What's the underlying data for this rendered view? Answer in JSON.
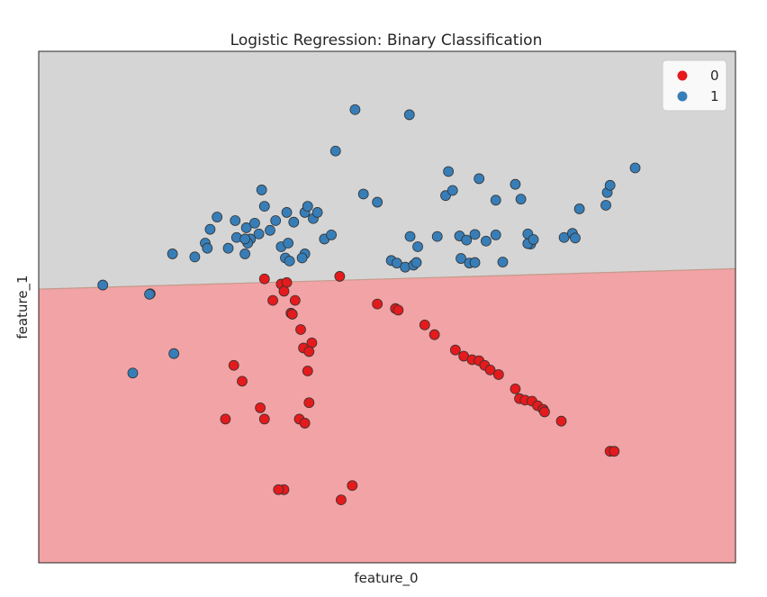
{
  "chart_data": {
    "type": "scatter",
    "title": "Logistic Regression: Binary Classification",
    "xlabel": "feature_0",
    "ylabel": "feature_1",
    "xlim": [
      0,
      100
    ],
    "ylim": [
      0,
      100
    ],
    "grid": false,
    "ticks_visible": false,
    "legend": {
      "placement": "top-right"
    },
    "decision_boundary": {
      "description_values": [
        [
          0,
          53.5
        ],
        [
          100,
          57.5
        ]
      ],
      "region_above_class": "1",
      "region_below_class": "0"
    },
    "colors": {
      "class_0": "#e41a1c",
      "class_1": "#377eb8",
      "region_0": "#f2a3a5",
      "region_1": "#d5d5d5",
      "point_edge": "#333333",
      "boundary": "#c49a8a"
    },
    "series": [
      {
        "name": "0",
        "points": [
          [
            32.4,
            55.5
          ],
          [
            34.8,
            54.5
          ],
          [
            35.6,
            54.8
          ],
          [
            35.2,
            53.1
          ],
          [
            43.2,
            56.0
          ],
          [
            33.6,
            51.3
          ],
          [
            36.8,
            51.3
          ],
          [
            36.2,
            48.8
          ],
          [
            36.4,
            48.6
          ],
          [
            37.6,
            45.6
          ],
          [
            38.0,
            42.0
          ],
          [
            39.2,
            43.0
          ],
          [
            38.8,
            41.3
          ],
          [
            38.6,
            37.5
          ],
          [
            28.0,
            38.6
          ],
          [
            29.2,
            35.5
          ],
          [
            38.8,
            31.3
          ],
          [
            26.8,
            28.1
          ],
          [
            31.8,
            30.3
          ],
          [
            32.4,
            28.1
          ],
          [
            37.4,
            28.1
          ],
          [
            38.2,
            27.3
          ],
          [
            35.2,
            14.3
          ],
          [
            34.4,
            14.3
          ],
          [
            45.0,
            15.1
          ],
          [
            43.4,
            12.3
          ],
          [
            48.6,
            50.6
          ],
          [
            51.2,
            49.7
          ],
          [
            51.6,
            49.4
          ],
          [
            55.4,
            46.5
          ],
          [
            56.8,
            44.6
          ],
          [
            59.8,
            41.6
          ],
          [
            61.0,
            40.4
          ],
          [
            62.2,
            39.7
          ],
          [
            63.2,
            39.5
          ],
          [
            64.0,
            38.6
          ],
          [
            64.8,
            37.7
          ],
          [
            66.0,
            36.8
          ],
          [
            68.4,
            34.0
          ],
          [
            69.0,
            32.1
          ],
          [
            69.8,
            31.8
          ],
          [
            70.8,
            31.6
          ],
          [
            71.6,
            30.7
          ],
          [
            72.4,
            30.0
          ],
          [
            72.6,
            29.5
          ],
          [
            75.0,
            27.7
          ],
          [
            82.0,
            21.8
          ],
          [
            82.6,
            21.8
          ]
        ]
      },
      {
        "name": "1",
        "points": [
          [
            45.4,
            88.6
          ],
          [
            53.2,
            87.6
          ],
          [
            42.6,
            80.5
          ],
          [
            58.8,
            76.5
          ],
          [
            63.2,
            75.1
          ],
          [
            68.4,
            74.0
          ],
          [
            85.6,
            77.2
          ],
          [
            32.0,
            72.9
          ],
          [
            32.4,
            69.7
          ],
          [
            46.6,
            72.1
          ],
          [
            48.6,
            70.5
          ],
          [
            58.4,
            71.8
          ],
          [
            59.4,
            72.8
          ],
          [
            65.6,
            70.9
          ],
          [
            69.2,
            71.1
          ],
          [
            77.6,
            69.2
          ],
          [
            81.4,
            69.9
          ],
          [
            81.6,
            72.4
          ],
          [
            82.0,
            73.8
          ],
          [
            19.2,
            60.4
          ],
          [
            23.9,
            62.5
          ],
          [
            24.6,
            65.2
          ],
          [
            25.6,
            67.6
          ],
          [
            28.2,
            66.9
          ],
          [
            29.8,
            65.5
          ],
          [
            30.4,
            63.3
          ],
          [
            31.0,
            66.4
          ],
          [
            34.0,
            66.9
          ],
          [
            35.6,
            68.5
          ],
          [
            36.6,
            66.6
          ],
          [
            38.2,
            68.5
          ],
          [
            38.6,
            69.7
          ],
          [
            39.4,
            67.3
          ],
          [
            40.0,
            68.5
          ],
          [
            29.6,
            60.4
          ],
          [
            38.2,
            60.4
          ],
          [
            34.8,
            61.8
          ],
          [
            35.8,
            62.5
          ],
          [
            30.0,
            62.5
          ],
          [
            41.0,
            63.3
          ],
          [
            42.0,
            64.1
          ],
          [
            53.3,
            63.8
          ],
          [
            54.4,
            61.8
          ],
          [
            57.2,
            63.8
          ],
          [
            60.4,
            63.9
          ],
          [
            61.4,
            63.1
          ],
          [
            62.6,
            64.2
          ],
          [
            64.2,
            62.9
          ],
          [
            65.6,
            64.1
          ],
          [
            70.2,
            64.3
          ],
          [
            70.6,
            62.3
          ],
          [
            75.4,
            63.6
          ],
          [
            76.6,
            64.4
          ],
          [
            77.0,
            63.5
          ],
          [
            60.6,
            59.5
          ],
          [
            61.8,
            58.6
          ],
          [
            62.6,
            58.7
          ],
          [
            16.0,
            52.6
          ],
          [
            15.9,
            52.5
          ],
          [
            66.6,
            58.8
          ],
          [
            70.2,
            62.4
          ],
          [
            71.0,
            63.2
          ],
          [
            13.5,
            37.1
          ],
          [
            19.4,
            40.9
          ],
          [
            9.2,
            54.3
          ],
          [
            22.4,
            59.8
          ],
          [
            24.2,
            61.5
          ],
          [
            27.2,
            61.5
          ],
          [
            28.4,
            63.6
          ],
          [
            29.6,
            63.3
          ],
          [
            31.6,
            64.3
          ],
          [
            33.2,
            65.0
          ],
          [
            35.4,
            59.6
          ],
          [
            36.0,
            59.0
          ],
          [
            37.8,
            59.6
          ],
          [
            50.6,
            59.1
          ],
          [
            51.4,
            58.6
          ],
          [
            52.6,
            57.8
          ],
          [
            53.8,
            58.2
          ],
          [
            54.2,
            58.7
          ]
        ]
      }
    ]
  }
}
